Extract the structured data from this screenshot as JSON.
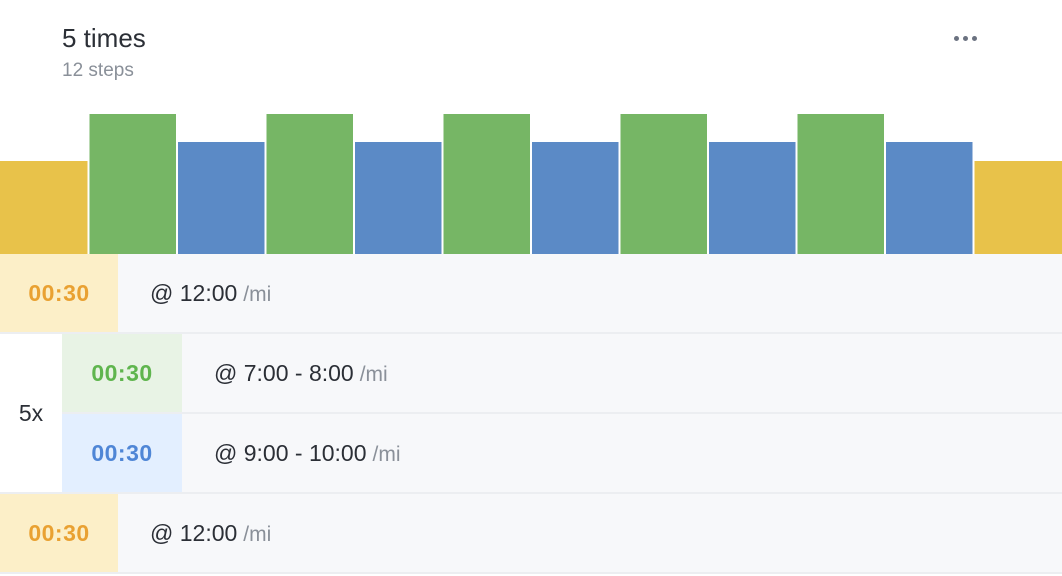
{
  "header": {
    "title": "5 times",
    "subtitle": "12 steps"
  },
  "icons": {
    "more": "more-horizontal-icon"
  },
  "colors": {
    "warmup": "#e8c24a",
    "work": "#76b665",
    "recovery": "#5b8ac6",
    "warmup_text": "#e9a132",
    "work_text": "#5fb54e",
    "recovery_text": "#4f86d6",
    "warmup_bg": "#fcefc8",
    "work_bg": "#e8f3e5",
    "recovery_bg": "#e3efff"
  },
  "chart_data": {
    "type": "bar",
    "steps": [
      {
        "kind": "warmup",
        "level": 2
      },
      {
        "kind": "work",
        "level": 3
      },
      {
        "kind": "recovery",
        "level": 1
      },
      {
        "kind": "work",
        "level": 3
      },
      {
        "kind": "recovery",
        "level": 1
      },
      {
        "kind": "work",
        "level": 3
      },
      {
        "kind": "recovery",
        "level": 1
      },
      {
        "kind": "work",
        "level": 3
      },
      {
        "kind": "recovery",
        "level": 1
      },
      {
        "kind": "work",
        "level": 3
      },
      {
        "kind": "recovery",
        "level": 1
      },
      {
        "kind": "warmup",
        "level": 2
      }
    ]
  },
  "steps": {
    "warmup": {
      "duration": "00:30",
      "pace": "@ 12:00",
      "unit": "/mi"
    },
    "repeat_label": "5x",
    "work": {
      "duration": "00:30",
      "pace": "@ 7:00 - 8:00",
      "unit": "/mi"
    },
    "recovery": {
      "duration": "00:30",
      "pace": "@ 9:00 - 10:00",
      "unit": "/mi"
    },
    "cooldown": {
      "duration": "00:30",
      "pace": "@ 12:00",
      "unit": "/mi"
    }
  }
}
